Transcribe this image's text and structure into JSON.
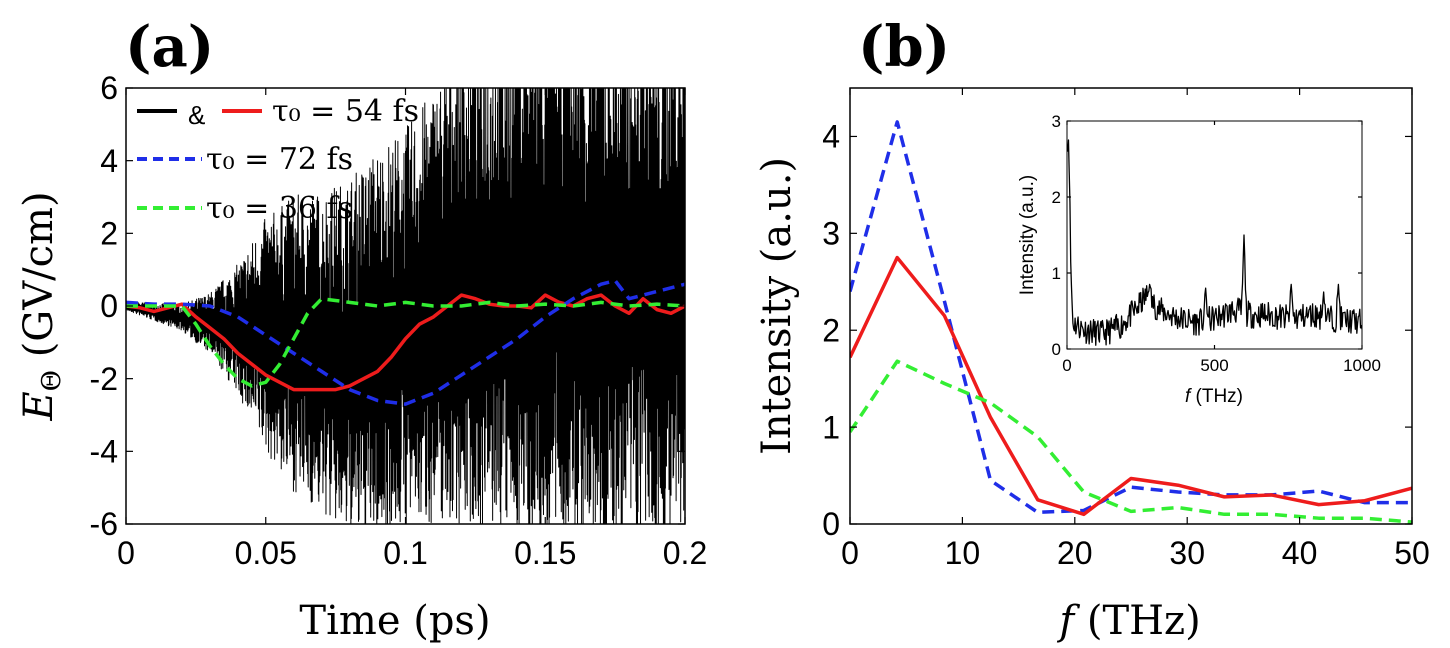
{
  "colors": {
    "black": "#000000",
    "red": "#ee1c1c",
    "blue": "#1f2ee8",
    "green": "#33ee33"
  },
  "chart_data": [
    {
      "panel_label": "(a)",
      "type": "line",
      "xlabel": "Time (ps)",
      "ylabel_main": "E",
      "ylabel_sub": "Θ",
      "ylabel_rest": " (GV/cm)",
      "xlim": [
        0,
        0.2
      ],
      "ylim": [
        -6,
        6
      ],
      "xticks": [
        0,
        0.05,
        0.1,
        0.15,
        0.2
      ],
      "xtick_labels": [
        "0",
        "0.05",
        "0.1",
        "0.15",
        "0.2"
      ],
      "yticks": [
        -6,
        -4,
        -2,
        0,
        2,
        4,
        6
      ],
      "ytick_labels": [
        "-6",
        "-4",
        "-2",
        "0",
        "2",
        "4",
        "6"
      ],
      "grid": false,
      "legend_position": "top-left",
      "legend": [
        {
          "text": "τ₀ = 54 fs",
          "prefix": "&",
          "colors": [
            "#000000",
            "#ee1c1c"
          ],
          "dash": "solid"
        },
        {
          "text": "τ₀ = 72 fs",
          "colors": [
            "#1f2ee8"
          ],
          "dash": "dashed"
        },
        {
          "text": "τ₀ = 36 fs",
          "colors": [
            "#33ee33"
          ],
          "dash": "dashed"
        }
      ],
      "oscillation": {
        "color": "#000000",
        "envelope_t": [
          0,
          0.02,
          0.03,
          0.04,
          0.05,
          0.06,
          0.07,
          0.08,
          0.09,
          0.1,
          0.11,
          0.12,
          0.13,
          0.14,
          0.15,
          0.16,
          0.17,
          0.18,
          0.19,
          0.2
        ],
        "envelope_amp": [
          0.1,
          0.3,
          0.7,
          1.5,
          2.7,
          3.4,
          3.7,
          4.2,
          4.5,
          4.6,
          5.0,
          5.5,
          5.8,
          6.0,
          6.0,
          6.0,
          6.0,
          6.0,
          6.0,
          6.0
        ],
        "center_t": [
          0,
          0.05,
          0.08,
          0.1,
          0.11,
          0.12,
          0.14,
          0.2
        ],
        "center_v": [
          0,
          -0.8,
          -1.5,
          -0.6,
          0,
          0.6,
          0.8,
          0.5
        ]
      },
      "series": [
        {
          "color": "#ee1c1c",
          "dash": "solid",
          "x": [
            0,
            0.005,
            0.01,
            0.015,
            0.02,
            0.025,
            0.03,
            0.035,
            0.04,
            0.045,
            0.05,
            0.055,
            0.06,
            0.065,
            0.07,
            0.075,
            0.08,
            0.085,
            0.09,
            0.095,
            0.1,
            0.105,
            0.11,
            0.115,
            0.12,
            0.125,
            0.13,
            0.135,
            0.14,
            0.145,
            0.15,
            0.155,
            0.16,
            0.165,
            0.17,
            0.175,
            0.18,
            0.185,
            0.19,
            0.195,
            0.2
          ],
          "y": [
            0,
            -0.05,
            -0.15,
            -0.05,
            0.05,
            -0.3,
            -0.6,
            -0.9,
            -1.3,
            -1.6,
            -1.9,
            -2.1,
            -2.3,
            -2.3,
            -2.3,
            -2.3,
            -2.2,
            -2.0,
            -1.8,
            -1.4,
            -0.9,
            -0.5,
            -0.3,
            0.0,
            0.3,
            0.2,
            0.05,
            0.0,
            0.0,
            -0.05,
            0.3,
            0.1,
            0.0,
            0.2,
            0.3,
            0.0,
            -0.2,
            0.2,
            -0.1,
            -0.2,
            0.0
          ]
        },
        {
          "color": "#1f2ee8",
          "dash": "dashed",
          "x": [
            0,
            0.01,
            0.02,
            0.03,
            0.04,
            0.05,
            0.06,
            0.07,
            0.08,
            0.09,
            0.1,
            0.11,
            0.12,
            0.13,
            0.14,
            0.15,
            0.16,
            0.17,
            0.175,
            0.18,
            0.19,
            0.2
          ],
          "y": [
            0.1,
            0.05,
            0.05,
            0.0,
            -0.3,
            -0.8,
            -1.3,
            -1.8,
            -2.3,
            -2.6,
            -2.7,
            -2.4,
            -1.9,
            -1.4,
            -0.9,
            -0.3,
            0.2,
            0.6,
            0.7,
            0.2,
            0.4,
            0.6
          ]
        },
        {
          "color": "#33ee33",
          "dash": "dashed",
          "x": [
            0,
            0.01,
            0.02,
            0.025,
            0.03,
            0.035,
            0.04,
            0.045,
            0.05,
            0.055,
            0.06,
            0.065,
            0.07,
            0.08,
            0.09,
            0.1,
            0.11,
            0.12,
            0.13,
            0.14,
            0.15,
            0.16,
            0.17,
            0.18,
            0.19,
            0.2
          ],
          "y": [
            0,
            0,
            0,
            -0.5,
            -1.1,
            -1.6,
            -2.0,
            -2.2,
            -2.1,
            -1.6,
            -0.9,
            -0.2,
            0.2,
            0.1,
            0.0,
            0.1,
            0.0,
            0.0,
            0.1,
            0.0,
            0.05,
            0.0,
            0.1,
            0.0,
            0.05,
            0.0
          ]
        }
      ]
    },
    {
      "panel_label": "(b)",
      "type": "line",
      "xlabel_main": "f",
      "xlabel_rest": " (THz)",
      "ylabel": "Intensity (a.u.)",
      "xlim": [
        0,
        50
      ],
      "ylim": [
        0,
        4.5
      ],
      "xticks": [
        0,
        10,
        20,
        30,
        40,
        50
      ],
      "xtick_labels": [
        "0",
        "10",
        "20",
        "30",
        "40",
        "50"
      ],
      "yticks": [
        0,
        1,
        2,
        3,
        4
      ],
      "ytick_labels": [
        "0",
        "1",
        "2",
        "3",
        "4"
      ],
      "grid": false,
      "series": [
        {
          "color": "#1f2ee8",
          "dash": "dashed",
          "x": [
            0,
            4.2,
            8.4,
            12.5,
            16.7,
            20.8,
            25,
            29.2,
            33.3,
            37.5,
            41.7,
            45.8,
            50
          ],
          "y": [
            2.4,
            4.15,
            2.3,
            0.45,
            0.12,
            0.14,
            0.38,
            0.33,
            0.3,
            0.3,
            0.34,
            0.22,
            0.22
          ]
        },
        {
          "color": "#ee1c1c",
          "dash": "solid",
          "x": [
            0,
            4.2,
            8.4,
            12.5,
            16.7,
            20.8,
            25,
            29.2,
            33.3,
            37.5,
            41.7,
            45.8,
            50
          ],
          "y": [
            1.72,
            2.75,
            2.15,
            1.1,
            0.25,
            0.1,
            0.47,
            0.4,
            0.28,
            0.3,
            0.2,
            0.24,
            0.37
          ]
        },
        {
          "color": "#33ee33",
          "dash": "dashed",
          "x": [
            0,
            4.2,
            8.4,
            12.5,
            16.7,
            20.8,
            25,
            29.2,
            33.3,
            37.5,
            41.7,
            45.8,
            50
          ],
          "y": [
            0.95,
            1.68,
            1.45,
            1.25,
            0.9,
            0.33,
            0.13,
            0.17,
            0.1,
            0.1,
            0.06,
            0.06,
            0.02
          ]
        }
      ],
      "inset": {
        "type": "line",
        "xlabel_main": "f",
        "xlabel_rest": " (THz)",
        "ylabel": "Intensity (a.u.)",
        "xlim": [
          0,
          1000
        ],
        "ylim": [
          0,
          3
        ],
        "xticks": [
          0,
          500,
          1000
        ],
        "xtick_labels": [
          "0",
          "500",
          "1000"
        ],
        "yticks": [
          0,
          1,
          2,
          3
        ],
        "ytick_labels": [
          "0",
          "1",
          "2",
          "3"
        ],
        "series": [
          {
            "color": "#000000",
            "dash": "solid",
            "baseline_x": [
              0,
              5,
              20,
              60,
              120,
              180,
              230,
              270,
              290,
              320,
              380,
              440,
              500,
              560,
              590,
              620,
              680,
              760,
              830,
              900,
              1000
            ],
            "baseline_y": [
              2.8,
              1.8,
              0.35,
              0.25,
              0.2,
              0.3,
              0.5,
              0.7,
              0.6,
              0.5,
              0.4,
              0.35,
              0.4,
              0.5,
              0.5,
              0.45,
              0.45,
              0.4,
              0.45,
              0.4,
              0.35
            ],
            "peaks_x": [
              5,
              280,
              470,
              600,
              760,
              870,
              920
            ],
            "peaks_y": [
              2.75,
              0.85,
              0.8,
              1.5,
              0.85,
              0.75,
              0.85
            ]
          }
        ]
      }
    }
  ]
}
